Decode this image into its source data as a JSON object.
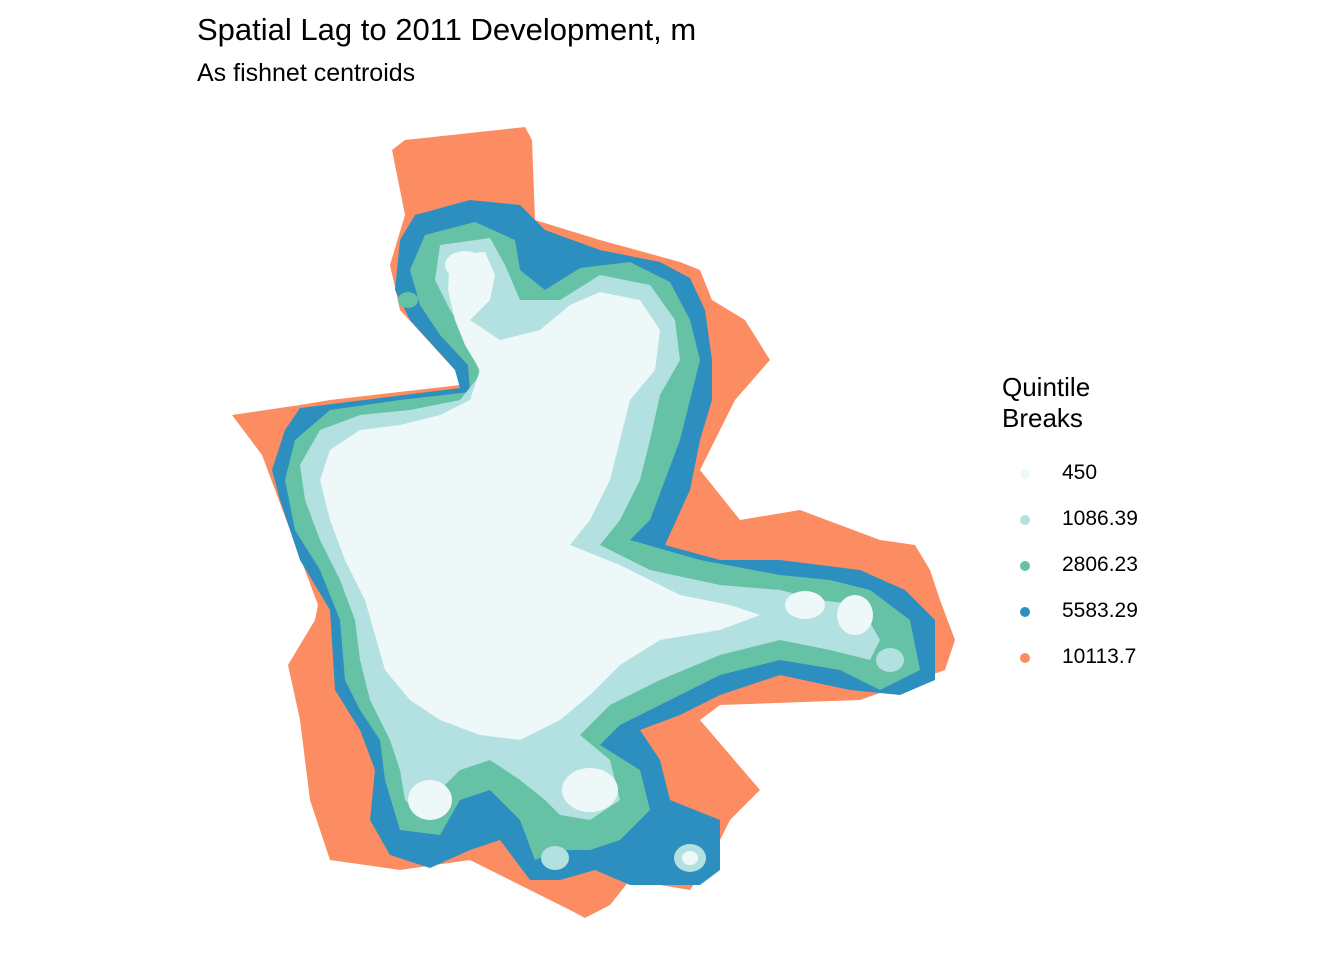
{
  "title": "Spatial Lag to 2011 Development, m",
  "subtitle": "As fishnet centroids",
  "legend": {
    "title": "Quintile\nBreaks",
    "items": [
      {
        "label": "450",
        "color": "#eef8f9"
      },
      {
        "label": "1086.39",
        "color": "#b3e0e0"
      },
      {
        "label": "2806.23",
        "color": "#66c2a5"
      },
      {
        "label": "5583.29",
        "color": "#2c8fbf"
      },
      {
        "label": "10113.7",
        "color": "#fc8d62"
      }
    ]
  },
  "chart_data": {
    "type": "map",
    "title": "Spatial Lag to 2011 Development, m",
    "subtitle": "As fishnet centroids",
    "legend_title": "Quintile Breaks",
    "legend_position": "right",
    "breaks": [
      450,
      1086.39,
      2806.23,
      5583.29,
      10113.7
    ],
    "colors": [
      "#eef8f9",
      "#b3e0e0",
      "#66c2a5",
      "#2c8fbf",
      "#fc8d62"
    ],
    "grid": false
  }
}
